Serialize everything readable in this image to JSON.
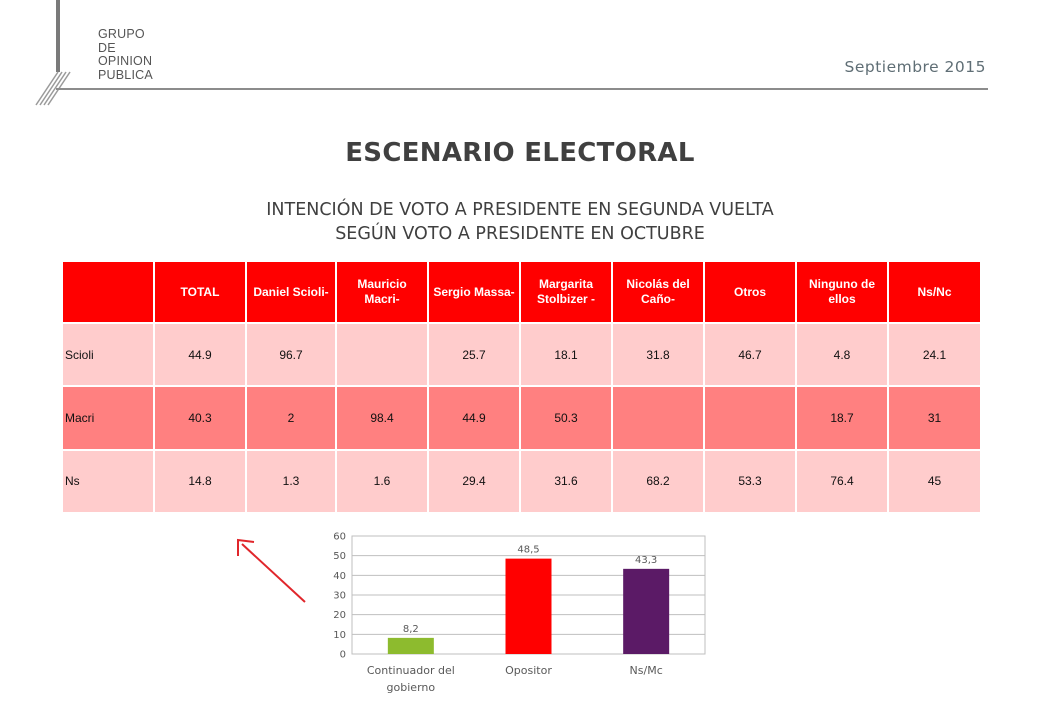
{
  "logo": {
    "lines": [
      "GRUPO",
      "DE",
      "OPINION",
      "PUBLICA"
    ]
  },
  "header": {
    "date": "Septiembre 2015"
  },
  "title": "ESCENARIO ELECTORAL",
  "subtitle": {
    "line1": "INTENCIÓN DE VOTO A PRESIDENTE EN SEGUNDA VUELTA",
    "line2": "SEGÚN VOTO A PRESIDENTE EN OCTUBRE"
  },
  "table": {
    "columns": [
      "",
      "TOTAL",
      "Daniel Scioli-",
      "Mauricio Macri-",
      "Sergio Massa-",
      "Margarita Stolbizer -",
      "Nicolás del Caño-",
      "Otros",
      "Ninguno de ellos",
      "Ns/Nc"
    ],
    "rows": [
      {
        "label": "Scioli",
        "cells": [
          "44.9",
          "96.7",
          "",
          "25.7",
          "18.1",
          "31.8",
          "46.7",
          "4.8",
          "24.1"
        ]
      },
      {
        "label": "Macri",
        "cells": [
          "40.3",
          "2",
          "98.4",
          "44.9",
          "50.3",
          "",
          "",
          "18.7",
          "31"
        ]
      },
      {
        "label": "Ns",
        "cells": [
          "14.8",
          "1.3",
          "1.6",
          "29.4",
          "31.6",
          "68.2",
          "53.3",
          "76.4",
          "45"
        ]
      }
    ]
  },
  "chart_data": {
    "type": "bar",
    "categories": [
      "Continuador del gobierno",
      "Opositor",
      "Ns/Mc"
    ],
    "category_lines": [
      [
        "Continuador del",
        "gobierno"
      ],
      [
        "Opositor"
      ],
      [
        "Ns/Mc"
      ]
    ],
    "values": [
      8.2,
      48.5,
      43.3
    ],
    "value_labels": [
      "8,2",
      "48,5",
      "43,3"
    ],
    "colors": [
      "#8dbb2e",
      "#ff0000",
      "#5b1a66"
    ],
    "ylim": [
      0,
      60
    ],
    "yticks": [
      0,
      10,
      20,
      30,
      40,
      50,
      60
    ],
    "grid": true,
    "title": "",
    "xlabel": "",
    "ylabel": ""
  },
  "colors": {
    "header_red": "#ff0000",
    "row_light": "#ffcccc",
    "row_dark": "#ff8080",
    "arrow": "#e0262b"
  }
}
